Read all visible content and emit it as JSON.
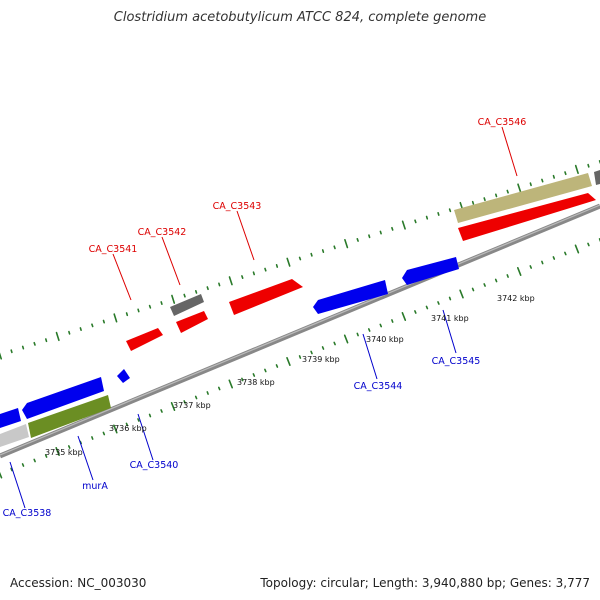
{
  "header": {
    "title": "Clostridium acetobutylicum ATCC 824, complete genome"
  },
  "footer": {
    "accession": "Accession: NC_003030",
    "summary": "Topology: circular; Length: 3,940,880 bp; Genes: 3,777"
  },
  "colors": {
    "forward_label": "#dd0000",
    "reverse_label": "#0000cc",
    "ticks": "#2a7a2a",
    "backbone": "#888888"
  },
  "scale_labels": [
    "3735 kbp",
    "3736 kbp",
    "3737 kbp",
    "3738 kbp",
    "3739 kbp",
    "3740 kbp",
    "3741 kbp",
    "3742 kbp"
  ],
  "gene_labels": [
    {
      "id": "CA_C3541",
      "strand": "forward"
    },
    {
      "id": "CA_C3542",
      "strand": "forward"
    },
    {
      "id": "CA_C3543",
      "strand": "forward"
    },
    {
      "id": "CA_C3546",
      "strand": "forward"
    },
    {
      "id": "CA_C3538",
      "strand": "reverse"
    },
    {
      "id": "murA",
      "strand": "reverse"
    },
    {
      "id": "CA_C3540",
      "strand": "reverse"
    },
    {
      "id": "CA_C3544",
      "strand": "reverse"
    },
    {
      "id": "CA_C3545",
      "strand": "reverse"
    }
  ]
}
